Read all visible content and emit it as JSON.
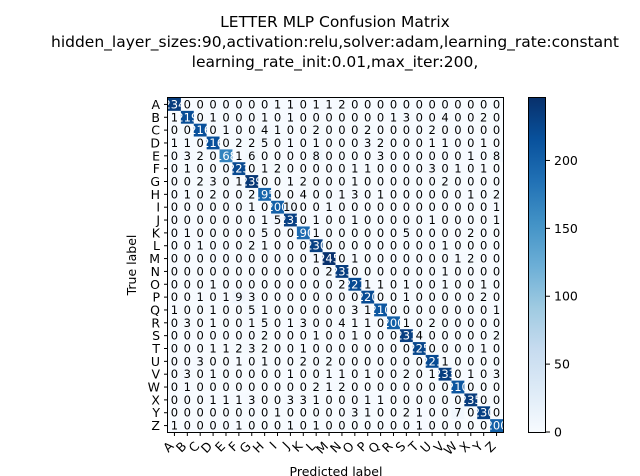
{
  "chart_data": {
    "type": "heatmap",
    "title_lines": [
      "LETTER MLP Confusion Matrix",
      "hidden_layer_sizes:90,activation:relu,solver:adam,learning_rate:constant",
      "learning_rate_init:0.01,max_iter:200,"
    ],
    "xlabel": "Predicted label",
    "ylabel": "True label",
    "labels": [
      "A",
      "B",
      "C",
      "D",
      "E",
      "F",
      "G",
      "H",
      "I",
      "J",
      "K",
      "L",
      "M",
      "N",
      "O",
      "P",
      "Q",
      "R",
      "S",
      "T",
      "U",
      "V",
      "W",
      "X",
      "Y",
      "Z"
    ],
    "colorbar": {
      "min": 0,
      "max": 246,
      "ticks": [
        0,
        50,
        100,
        150,
        200
      ],
      "colormap": "Blues"
    },
    "matrix": [
      [
        234,
        0,
        0,
        0,
        0,
        0,
        0,
        0,
        1,
        1,
        0,
        1,
        1,
        2,
        0,
        0,
        0,
        0,
        0,
        0,
        0,
        0,
        0,
        0,
        0,
        0
      ],
      [
        1,
        219,
        0,
        1,
        0,
        0,
        0,
        1,
        0,
        1,
        0,
        0,
        0,
        0,
        0,
        0,
        0,
        1,
        3,
        0,
        0,
        4,
        0,
        0,
        2,
        0
      ],
      [
        0,
        0,
        216,
        0,
        1,
        0,
        0,
        4,
        1,
        0,
        0,
        2,
        0,
        0,
        0,
        2,
        0,
        0,
        0,
        0,
        2,
        0,
        0,
        0,
        0,
        0
      ],
      [
        1,
        1,
        0,
        216,
        0,
        2,
        2,
        5,
        0,
        1,
        0,
        1,
        0,
        0,
        0,
        3,
        2,
        0,
        0,
        0,
        1,
        1,
        0,
        0,
        1,
        0
      ],
      [
        0,
        3,
        2,
        0,
        168,
        1,
        6,
        0,
        0,
        0,
        0,
        8,
        0,
        0,
        0,
        0,
        3,
        0,
        0,
        0,
        0,
        0,
        0,
        1,
        0,
        8
      ],
      [
        0,
        1,
        0,
        0,
        0,
        223,
        0,
        1,
        2,
        0,
        0,
        0,
        0,
        0,
        1,
        1,
        0,
        0,
        0,
        0,
        3,
        0,
        1,
        0,
        1,
        0
      ],
      [
        0,
        0,
        2,
        3,
        0,
        1,
        239,
        0,
        0,
        1,
        2,
        0,
        0,
        0,
        1,
        0,
        0,
        0,
        0,
        0,
        0,
        2,
        0,
        0,
        0,
        0
      ],
      [
        0,
        1,
        0,
        2,
        0,
        0,
        2,
        195,
        0,
        0,
        4,
        0,
        0,
        1,
        3,
        0,
        1,
        0,
        0,
        0,
        0,
        0,
        0,
        1,
        0,
        2
      ],
      [
        0,
        0,
        0,
        0,
        0,
        0,
        1,
        0,
        200,
        10,
        0,
        0,
        1,
        0,
        0,
        0,
        0,
        0,
        0,
        0,
        0,
        0,
        0,
        0,
        0,
        1
      ],
      [
        0,
        0,
        0,
        0,
        0,
        0,
        0,
        1,
        5,
        231,
        0,
        1,
        0,
        0,
        1,
        0,
        0,
        0,
        0,
        0,
        1,
        0,
        0,
        0,
        0,
        1
      ],
      [
        0,
        1,
        0,
        0,
        0,
        0,
        0,
        5,
        0,
        0,
        190,
        1,
        0,
        0,
        0,
        0,
        0,
        0,
        5,
        0,
        0,
        0,
        0,
        2,
        0,
        0
      ],
      [
        0,
        0,
        1,
        0,
        0,
        0,
        2,
        1,
        0,
        0,
        0,
        230,
        0,
        0,
        0,
        0,
        0,
        0,
        0,
        0,
        0,
        1,
        0,
        0,
        0,
        0
      ],
      [
        0,
        0,
        0,
        0,
        0,
        0,
        0,
        0,
        0,
        0,
        0,
        1,
        245,
        0,
        1,
        0,
        0,
        0,
        0,
        0,
        0,
        0,
        1,
        2,
        0,
        0
      ],
      [
        0,
        0,
        0,
        0,
        0,
        0,
        0,
        0,
        0,
        0,
        0,
        0,
        2,
        233,
        0,
        0,
        0,
        0,
        0,
        0,
        0,
        1,
        0,
        0,
        0,
        0
      ],
      [
        0,
        0,
        0,
        1,
        0,
        0,
        0,
        0,
        0,
        0,
        0,
        0,
        0,
        2,
        221,
        1,
        1,
        0,
        1,
        0,
        0,
        1,
        0,
        0,
        1,
        0
      ],
      [
        0,
        0,
        1,
        0,
        1,
        9,
        3,
        0,
        0,
        0,
        0,
        0,
        0,
        0,
        0,
        220,
        0,
        0,
        1,
        0,
        0,
        0,
        0,
        0,
        2,
        0
      ],
      [
        1,
        0,
        0,
        1,
        0,
        0,
        5,
        1,
        0,
        0,
        0,
        0,
        0,
        0,
        3,
        1,
        210,
        0,
        0,
        0,
        0,
        0,
        0,
        0,
        0,
        1
      ],
      [
        0,
        3,
        0,
        1,
        0,
        0,
        1,
        5,
        0,
        1,
        3,
        0,
        0,
        4,
        1,
        1,
        0,
        200,
        1,
        0,
        2,
        0,
        0,
        0,
        0,
        0
      ],
      [
        0,
        0,
        0,
        0,
        0,
        0,
        0,
        2,
        0,
        0,
        0,
        1,
        0,
        0,
        1,
        0,
        0,
        0,
        231,
        4,
        0,
        0,
        0,
        0,
        0,
        2
      ],
      [
        0,
        0,
        0,
        1,
        1,
        2,
        3,
        2,
        0,
        0,
        1,
        0,
        0,
        0,
        0,
        0,
        0,
        0,
        0,
        225,
        0,
        0,
        0,
        0,
        1,
        0
      ],
      [
        0,
        0,
        3,
        0,
        0,
        1,
        0,
        1,
        0,
        0,
        2,
        0,
        2,
        0,
        0,
        0,
        0,
        0,
        0,
        0,
        221,
        1,
        0,
        0,
        0,
        0
      ],
      [
        0,
        3,
        0,
        1,
        0,
        0,
        0,
        0,
        0,
        1,
        0,
        0,
        1,
        1,
        0,
        1,
        0,
        0,
        2,
        0,
        1,
        233,
        0,
        1,
        0,
        3
      ],
      [
        0,
        1,
        0,
        0,
        0,
        0,
        0,
        0,
        0,
        0,
        0,
        2,
        1,
        2,
        0,
        0,
        0,
        0,
        0,
        0,
        0,
        0,
        210,
        0,
        0,
        0
      ],
      [
        0,
        0,
        0,
        1,
        1,
        1,
        3,
        0,
        0,
        3,
        3,
        1,
        0,
        0,
        0,
        1,
        1,
        0,
        0,
        0,
        0,
        0,
        0,
        235,
        0,
        0
      ],
      [
        0,
        0,
        0,
        0,
        0,
        0,
        0,
        0,
        1,
        0,
        0,
        0,
        0,
        0,
        3,
        1,
        0,
        0,
        2,
        1,
        0,
        0,
        7,
        0,
        230,
        0
      ],
      [
        1,
        0,
        0,
        0,
        0,
        1,
        0,
        0,
        0,
        1,
        0,
        1,
        0,
        0,
        0,
        0,
        0,
        0,
        0,
        1,
        0,
        0,
        0,
        0,
        0,
        200
      ]
    ]
  }
}
